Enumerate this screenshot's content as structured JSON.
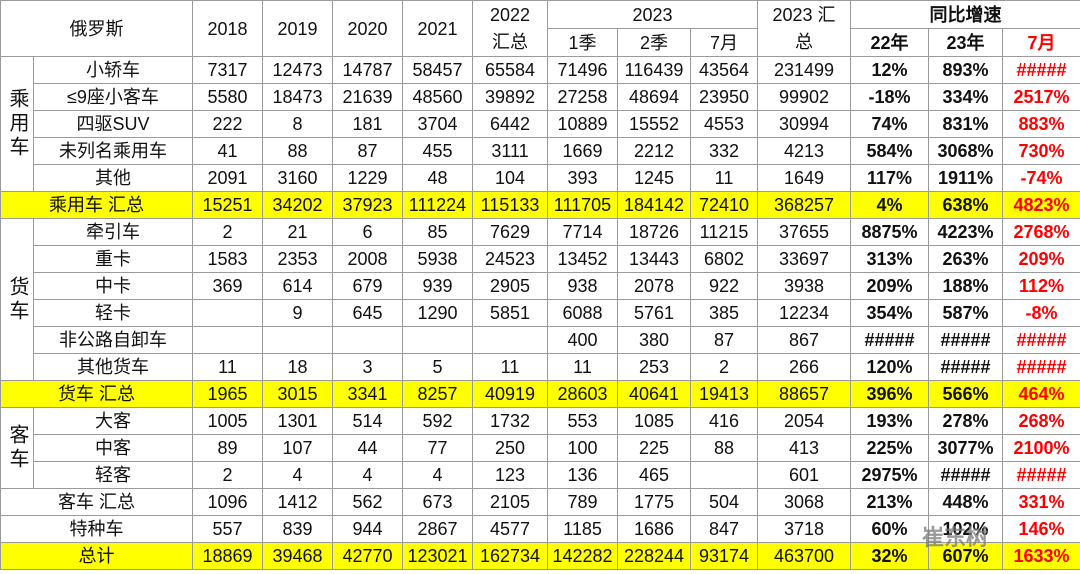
{
  "header": {
    "region": "俄罗斯",
    "years": [
      2018,
      2019,
      2020,
      2021
    ],
    "sum2022": [
      "2022",
      "汇总"
    ],
    "year2023": "2023",
    "periods": [
      "1季",
      "2季",
      "7月"
    ],
    "sum2023": [
      "2023 汇",
      "总"
    ],
    "growth": "同比增速",
    "growth_cols": [
      "22年",
      "23年",
      "7月"
    ]
  },
  "body": [
    {
      "group": "乘用车",
      "rows": [
        {
          "label": "小轿车",
          "values": [
            7317,
            12473,
            14787,
            58457,
            65584,
            71496,
            116439,
            43564,
            231499
          ],
          "growth": [
            "12%",
            "893%",
            "#####"
          ]
        },
        {
          "label": "≤9座小客车",
          "values": [
            5580,
            18473,
            21639,
            48560,
            39892,
            27258,
            48694,
            23950,
            99902
          ],
          "growth": [
            "-18%",
            "334%",
            "2517%"
          ]
        },
        {
          "label": "四驱SUV",
          "values": [
            222,
            8,
            181,
            3704,
            6442,
            10889,
            15552,
            4553,
            30994
          ],
          "growth": [
            "74%",
            "831%",
            "883%"
          ]
        },
        {
          "label": "未列名乘用车",
          "values": [
            41,
            88,
            87,
            455,
            3111,
            1669,
            2212,
            332,
            4213
          ],
          "growth": [
            "584%",
            "3068%",
            "730%"
          ]
        },
        {
          "label": "其他",
          "values": [
            2091,
            3160,
            1229,
            48,
            104,
            393,
            1245,
            11,
            1649
          ],
          "growth": [
            "117%",
            "1911%",
            "-74%"
          ]
        }
      ]
    },
    {
      "label": "乘用车 汇总",
      "total": true,
      "values": [
        15251,
        34202,
        37923,
        111224,
        115133,
        111705,
        184142,
        72410,
        368257
      ],
      "growth": [
        "4%",
        "638%",
        "4823%"
      ]
    },
    {
      "group": "货车",
      "rows": [
        {
          "label": "牵引车",
          "values": [
            2,
            21,
            6,
            85,
            7629,
            7714,
            18726,
            11215,
            37655
          ],
          "growth": [
            "8875%",
            "4223%",
            "2768%"
          ]
        },
        {
          "label": "重卡",
          "values": [
            1583,
            2353,
            2008,
            5938,
            24523,
            13452,
            13443,
            6802,
            33697
          ],
          "growth": [
            "313%",
            "263%",
            "209%"
          ]
        },
        {
          "label": "中卡",
          "values": [
            369,
            614,
            679,
            939,
            2905,
            938,
            2078,
            922,
            3938
          ],
          "growth": [
            "209%",
            "188%",
            "112%"
          ]
        },
        {
          "label": "轻卡",
          "values": [
            null,
            9,
            645,
            1290,
            5851,
            6088,
            5761,
            385,
            12234
          ],
          "growth": [
            "354%",
            "587%",
            "-8%"
          ]
        },
        {
          "label": "非公路自卸车",
          "values": [
            null,
            null,
            null,
            null,
            null,
            400,
            380,
            87,
            867
          ],
          "growth": [
            "#####",
            "#####",
            "#####"
          ]
        },
        {
          "label": "其他货车",
          "values": [
            11,
            18,
            3,
            5,
            11,
            11,
            253,
            2,
            266
          ],
          "growth": [
            "120%",
            "#####",
            "#####"
          ]
        }
      ]
    },
    {
      "label": "货车 汇总",
      "total": true,
      "values": [
        1965,
        3015,
        3341,
        8257,
        40919,
        28603,
        40641,
        19413,
        88657
      ],
      "growth": [
        "396%",
        "566%",
        "464%"
      ]
    },
    {
      "group": "客车",
      "rows": [
        {
          "label": "大客",
          "values": [
            1005,
            1301,
            514,
            592,
            1732,
            553,
            1085,
            416,
            2054
          ],
          "growth": [
            "193%",
            "278%",
            "268%"
          ]
        },
        {
          "label": "中客",
          "values": [
            89,
            107,
            44,
            77,
            250,
            100,
            225,
            88,
            413
          ],
          "growth": [
            "225%",
            "3077%",
            "2100%"
          ]
        },
        {
          "label": "轻客",
          "values": [
            2,
            4,
            4,
            4,
            123,
            136,
            465,
            null,
            601
          ],
          "growth": [
            "2975%",
            "#####",
            "#####"
          ]
        }
      ]
    },
    {
      "label": "客车 汇总",
      "values": [
        1096,
        1412,
        562,
        673,
        2105,
        789,
        1775,
        504,
        3068
      ],
      "growth": [
        "213%",
        "448%",
        "331%"
      ]
    },
    {
      "label": "特种车",
      "values": [
        557,
        839,
        944,
        2867,
        4577,
        1185,
        1686,
        847,
        3718
      ],
      "growth": [
        "60%",
        "102%",
        "146%"
      ]
    },
    {
      "label": "总计",
      "total": true,
      "values": [
        18869,
        39468,
        42770,
        123021,
        162734,
        142282,
        228244,
        93174,
        463700
      ],
      "growth": [
        "32%",
        "607%",
        "1633%"
      ]
    }
  ],
  "watermark": "崔东树"
}
